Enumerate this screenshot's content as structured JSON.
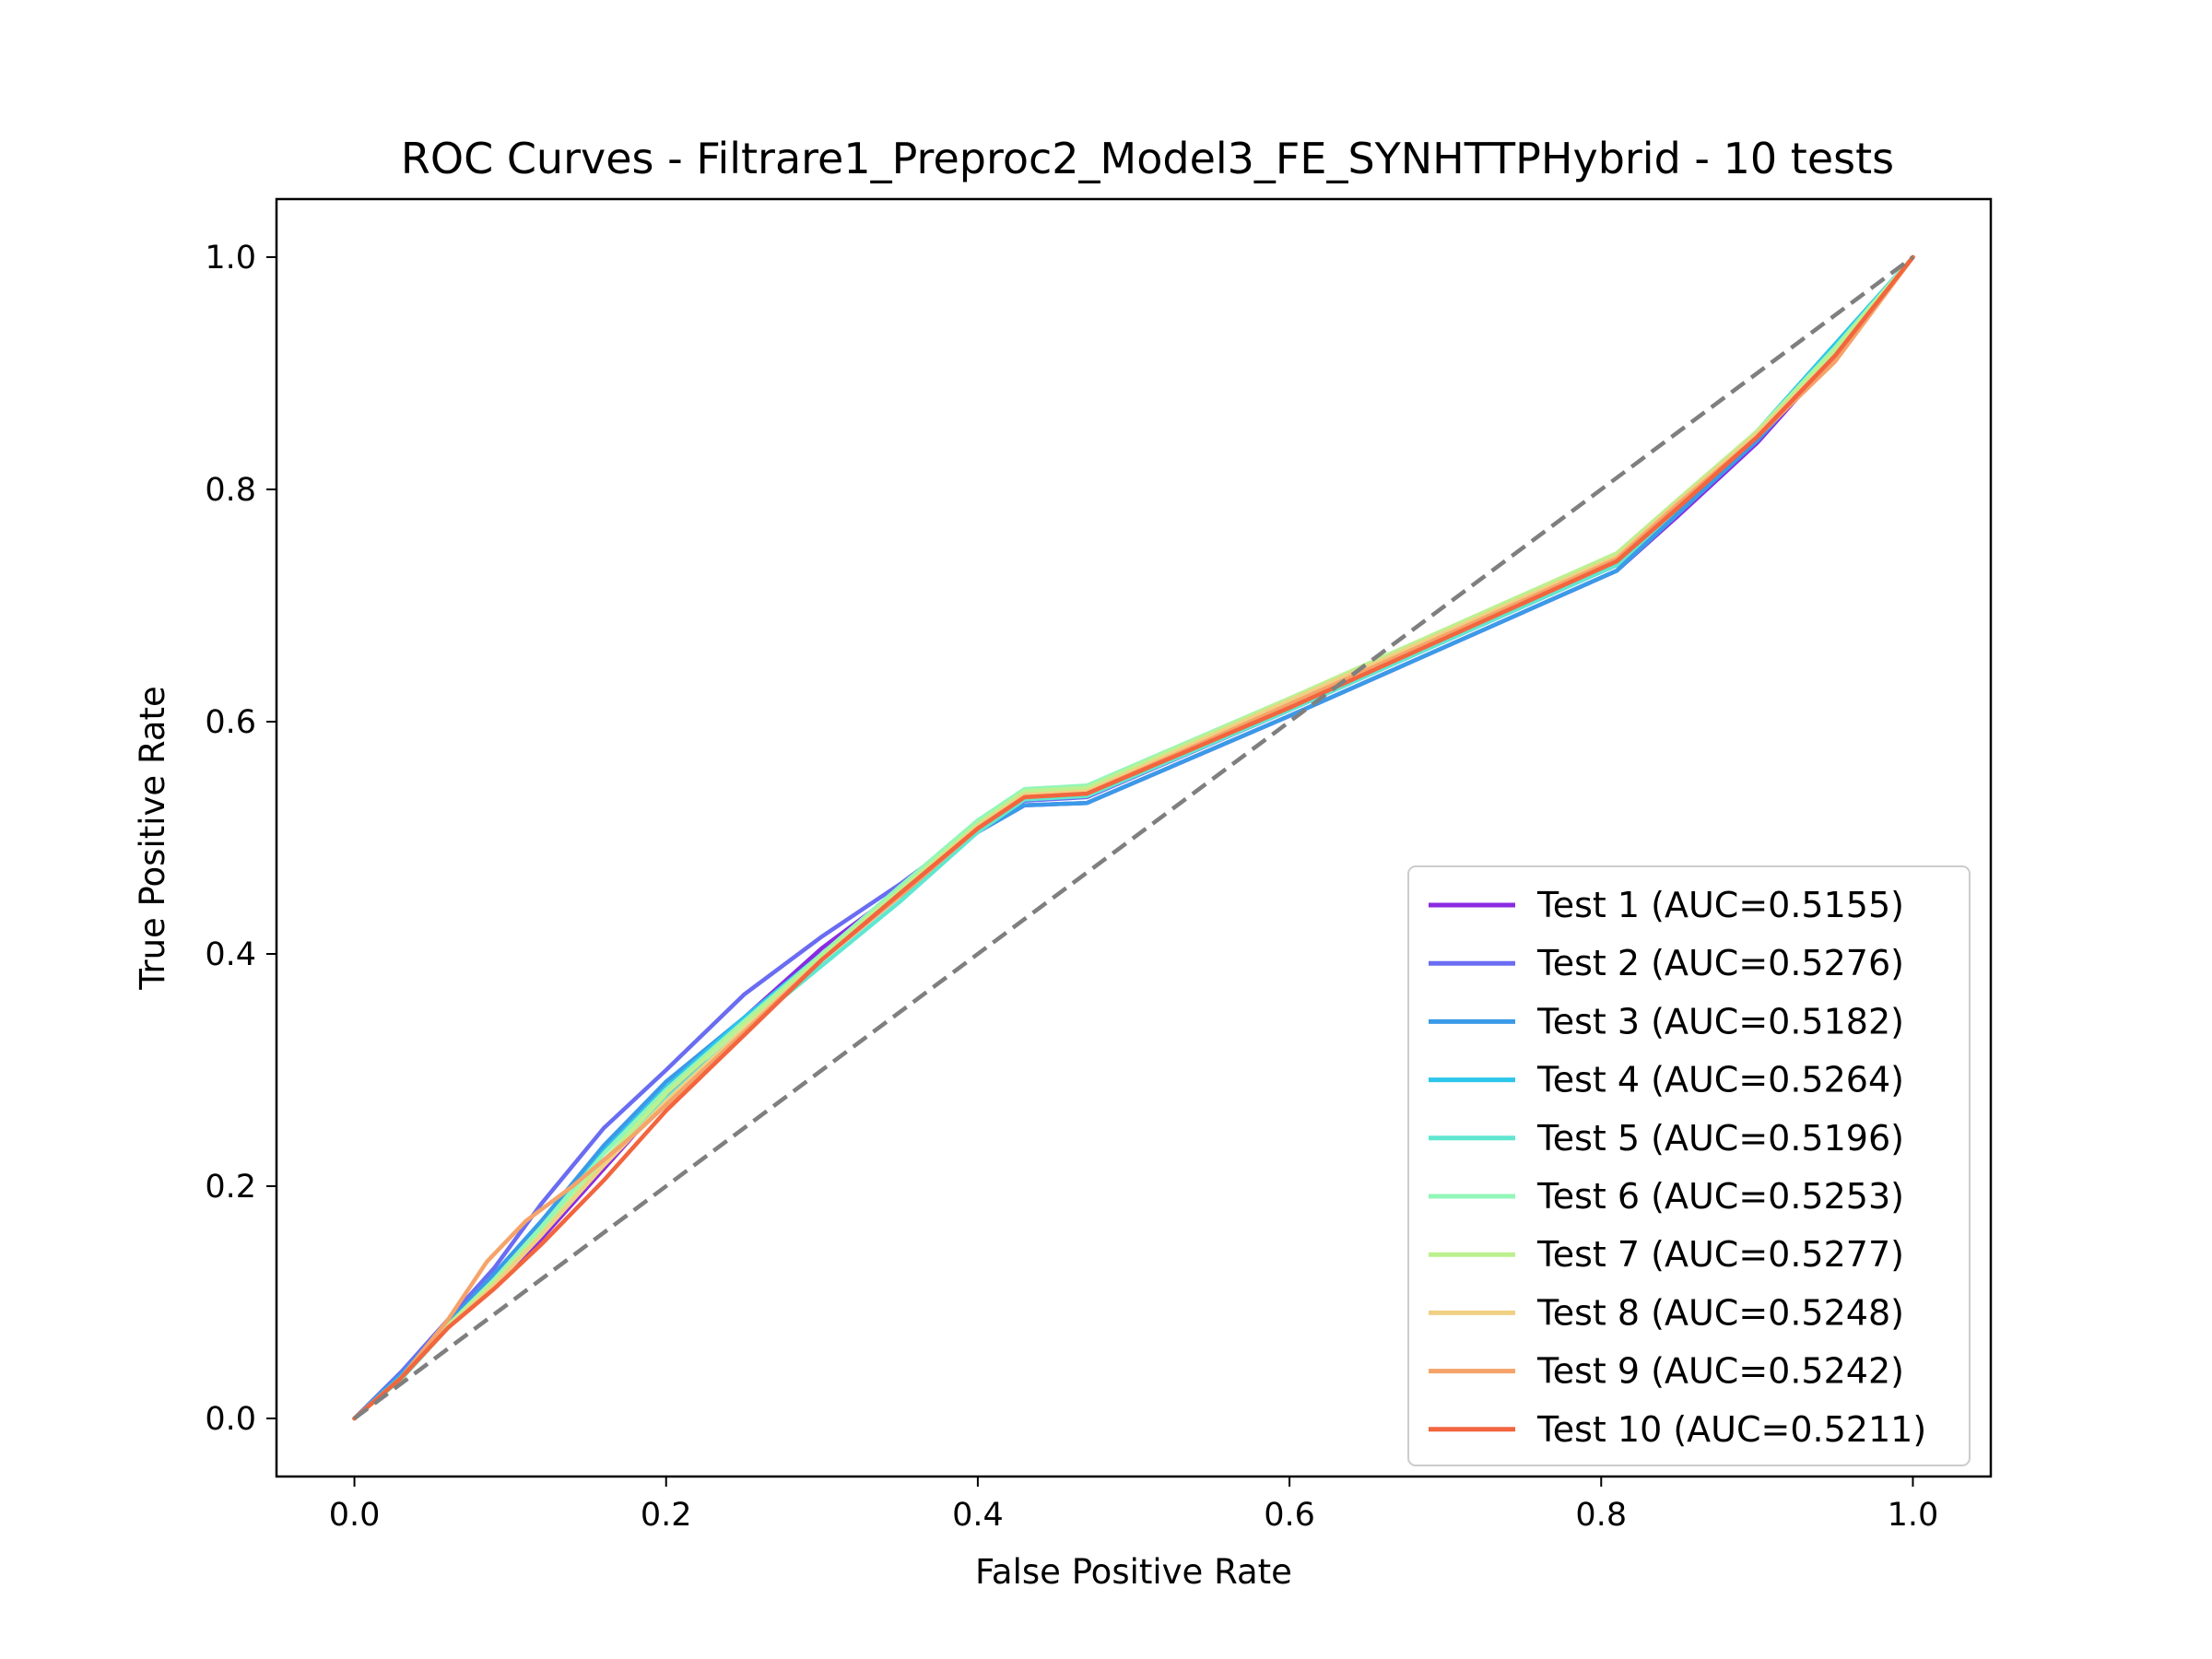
{
  "chart_data": {
    "type": "line",
    "title": "ROC Curves - Filtrare1_Preproc2_Model3_FE_SYNHTTPHybrid - 10 tests",
    "xlabel": "False Positive Rate",
    "ylabel": "True Positive Rate",
    "xlim": [
      -0.05,
      1.05
    ],
    "ylim": [
      -0.05,
      1.05
    ],
    "xticks": [
      "0.0",
      "0.2",
      "0.4",
      "0.6",
      "0.8",
      "1.0"
    ],
    "yticks": [
      "0.0",
      "0.2",
      "0.4",
      "0.6",
      "0.8",
      "1.0"
    ],
    "grid": false,
    "legend_position": "lower-right",
    "reference_line": {
      "x": [
        0,
        1
      ],
      "y": [
        0,
        1
      ],
      "color": "#7f7f7f",
      "style": "dashed"
    },
    "series": [
      {
        "name": "Test 1 (AUC=0.5155)",
        "color": "#8a2be2",
        "x": [
          0,
          0.03,
          0.06,
          0.09,
          0.12,
          0.16,
          0.2,
          0.25,
          0.3,
          0.35,
          0.4,
          0.43,
          0.47,
          0.6,
          0.81,
          0.85,
          0.9,
          0.95,
          1.0
        ],
        "y": [
          0,
          0.035,
          0.08,
          0.115,
          0.155,
          0.215,
          0.275,
          0.345,
          0.405,
          0.455,
          0.505,
          0.528,
          0.53,
          0.605,
          0.73,
          0.778,
          0.84,
          0.915,
          1.0
        ]
      },
      {
        "name": "Test 2 (AUC=0.5276)",
        "color": "#6a6cf2",
        "x": [
          0,
          0.03,
          0.06,
          0.09,
          0.12,
          0.16,
          0.2,
          0.25,
          0.3,
          0.35,
          0.4,
          0.43,
          0.47,
          0.6,
          0.81,
          0.85,
          0.9,
          0.95,
          1.0
        ],
        "y": [
          0,
          0.04,
          0.085,
          0.13,
          0.185,
          0.25,
          0.3,
          0.365,
          0.415,
          0.46,
          0.51,
          0.532,
          0.535,
          0.61,
          0.735,
          0.782,
          0.842,
          0.915,
          1.0
        ]
      },
      {
        "name": "Test 3 (AUC=0.5182)",
        "color": "#3b9ae8",
        "x": [
          0,
          0.03,
          0.06,
          0.09,
          0.12,
          0.16,
          0.2,
          0.25,
          0.3,
          0.35,
          0.4,
          0.43,
          0.47,
          0.6,
          0.81,
          0.85,
          0.9,
          0.95,
          1.0
        ],
        "y": [
          0,
          0.038,
          0.082,
          0.125,
          0.17,
          0.235,
          0.29,
          0.345,
          0.4,
          0.45,
          0.505,
          0.528,
          0.53,
          0.605,
          0.73,
          0.78,
          0.842,
          0.918,
          1.0
        ]
      },
      {
        "name": "Test 4 (AUC=0.5264)",
        "color": "#2cc6ea",
        "x": [
          0,
          0.03,
          0.06,
          0.09,
          0.12,
          0.16,
          0.2,
          0.25,
          0.3,
          0.35,
          0.4,
          0.43,
          0.47,
          0.6,
          0.81,
          0.85,
          0.9,
          0.95,
          1.0
        ],
        "y": [
          0,
          0.036,
          0.08,
          0.12,
          0.165,
          0.23,
          0.285,
          0.345,
          0.4,
          0.45,
          0.51,
          0.535,
          0.538,
          0.612,
          0.735,
          0.785,
          0.85,
          0.925,
          1.0
        ]
      },
      {
        "name": "Test 5 (AUC=0.5196)",
        "color": "#5fe7cf",
        "x": [
          0,
          0.03,
          0.06,
          0.09,
          0.12,
          0.16,
          0.2,
          0.25,
          0.3,
          0.35,
          0.4,
          0.43,
          0.47,
          0.6,
          0.81,
          0.85,
          0.9,
          0.95,
          1.0
        ],
        "y": [
          0,
          0.034,
          0.078,
          0.115,
          0.16,
          0.22,
          0.275,
          0.335,
          0.39,
          0.445,
          0.505,
          0.533,
          0.536,
          0.61,
          0.735,
          0.785,
          0.848,
          0.922,
          1.0
        ]
      },
      {
        "name": "Test 6 (AUC=0.5253)",
        "color": "#92f7b8",
        "x": [
          0,
          0.03,
          0.06,
          0.09,
          0.12,
          0.16,
          0.2,
          0.25,
          0.3,
          0.35,
          0.4,
          0.43,
          0.47,
          0.6,
          0.81,
          0.85,
          0.9,
          0.95,
          1.0
        ],
        "y": [
          0,
          0.035,
          0.08,
          0.12,
          0.165,
          0.228,
          0.283,
          0.342,
          0.4,
          0.458,
          0.515,
          0.542,
          0.545,
          0.62,
          0.742,
          0.79,
          0.85,
          0.922,
          1.0
        ]
      },
      {
        "name": "Test 7 (AUC=0.5277)",
        "color": "#bdf08f",
        "x": [
          0,
          0.03,
          0.06,
          0.09,
          0.12,
          0.16,
          0.2,
          0.25,
          0.3,
          0.35,
          0.4,
          0.43,
          0.47,
          0.6,
          0.81,
          0.85,
          0.9,
          0.95,
          1.0
        ],
        "y": [
          0,
          0.035,
          0.08,
          0.118,
          0.16,
          0.222,
          0.28,
          0.34,
          0.398,
          0.455,
          0.512,
          0.54,
          0.543,
          0.62,
          0.745,
          0.792,
          0.85,
          0.92,
          1.0
        ]
      },
      {
        "name": "Test 8 (AUC=0.5248)",
        "color": "#f0d084",
        "x": [
          0,
          0.03,
          0.06,
          0.09,
          0.12,
          0.16,
          0.2,
          0.25,
          0.3,
          0.35,
          0.4,
          0.43,
          0.47,
          0.6,
          0.81,
          0.85,
          0.9,
          0.95,
          1.0
        ],
        "y": [
          0,
          0.035,
          0.078,
          0.115,
          0.158,
          0.218,
          0.273,
          0.335,
          0.395,
          0.452,
          0.51,
          0.537,
          0.54,
          0.618,
          0.742,
          0.79,
          0.848,
          0.915,
          1.0
        ]
      },
      {
        "name": "Test 9 (AUC=0.5242)",
        "color": "#f5a36a",
        "x": [
          0,
          0.03,
          0.06,
          0.085,
          0.11,
          0.14,
          0.18,
          0.22,
          0.26,
          0.3,
          0.35,
          0.4,
          0.43,
          0.47,
          0.6,
          0.81,
          0.85,
          0.9,
          0.95,
          1.0
        ],
        "y": [
          0,
          0.035,
          0.085,
          0.135,
          0.17,
          0.2,
          0.245,
          0.295,
          0.345,
          0.395,
          0.45,
          0.508,
          0.535,
          0.538,
          0.615,
          0.74,
          0.788,
          0.845,
          0.91,
          1.0
        ]
      },
      {
        "name": "Test 10 (AUC=0.5211)",
        "color": "#f2653e",
        "x": [
          0,
          0.03,
          0.06,
          0.09,
          0.12,
          0.16,
          0.2,
          0.25,
          0.3,
          0.35,
          0.4,
          0.43,
          0.47,
          0.6,
          0.81,
          0.85,
          0.9,
          0.95,
          1.0
        ],
        "y": [
          0,
          0.035,
          0.078,
          0.112,
          0.15,
          0.205,
          0.265,
          0.33,
          0.395,
          0.452,
          0.508,
          0.535,
          0.538,
          0.612,
          0.738,
          0.785,
          0.845,
          0.915,
          1.0
        ]
      }
    ]
  }
}
